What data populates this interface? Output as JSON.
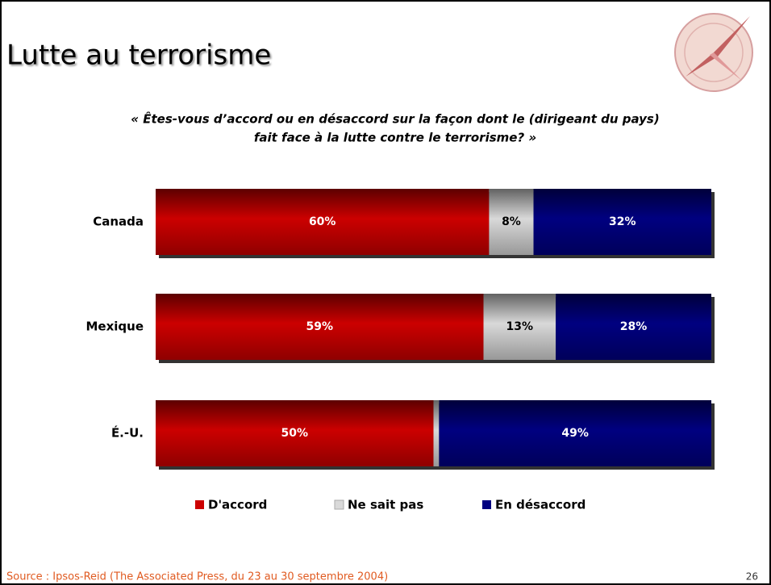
{
  "chart_data": {
    "type": "stacked-bar-horizontal",
    "title": "Lutte au terrorisme",
    "subtitle": [
      "« Êtes-vous d’accord ou en désaccord sur la façon dont le (dirigeant du pays)",
      "fait face à la lutte contre le terrorisme? »"
    ],
    "categories": [
      "Canada",
      "Mexique",
      "É.-U."
    ],
    "xlim": [
      0,
      100
    ],
    "series": [
      {
        "name": "D'accord",
        "color": "#cc0000",
        "values": [
          60,
          59,
          50
        ],
        "value_labels": [
          "60%",
          "59%",
          "50%"
        ]
      },
      {
        "name": "Ne sait pas",
        "color": "#d9d9d9",
        "values": [
          8,
          13,
          1
        ],
        "value_labels": [
          "8%",
          "13%",
          null
        ]
      },
      {
        "name": "En désaccord",
        "color": "#000080",
        "values": [
          32,
          28,
          49
        ],
        "value_labels": [
          "32%",
          "28%",
          "49%"
        ]
      }
    ],
    "source": "Source : Ipsos-Reid (The Associated Press, du 23 au 30 septembre 2004)",
    "page_number": "26"
  }
}
